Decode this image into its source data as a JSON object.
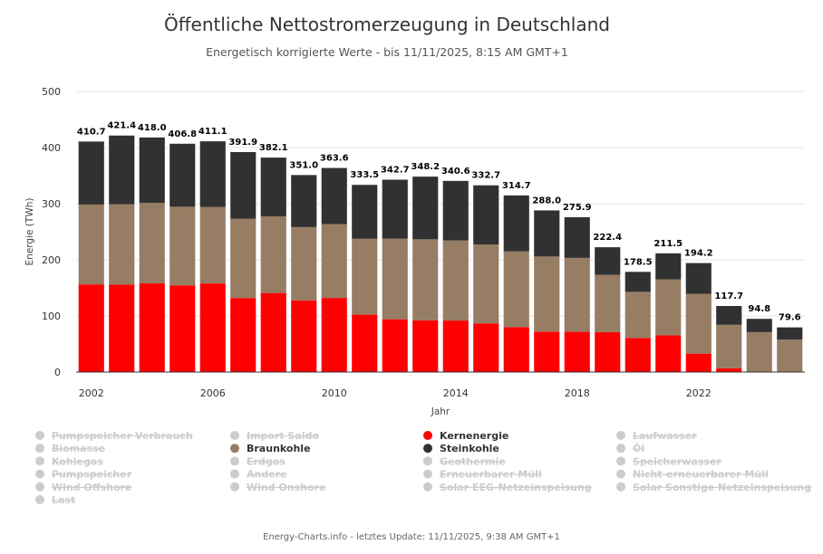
{
  "chart_data": {
    "type": "bar",
    "stacked": true,
    "title": "Öffentliche Nettostromerzeugung in Deutschland",
    "subtitle": "Energetisch korrigierte Werte - bis 11/11/2025, 8:15 AM GMT+1",
    "xlabel": "Jahr",
    "ylabel": "Energie (TWh)",
    "ylim": [
      0,
      500
    ],
    "yticks": [
      0,
      100,
      200,
      300,
      400,
      500
    ],
    "xticks": [
      "2002",
      "2006",
      "2010",
      "2014",
      "2018",
      "2022"
    ],
    "categories": [
      "2002",
      "2003",
      "2004",
      "2005",
      "2006",
      "2007",
      "2008",
      "2009",
      "2010",
      "2011",
      "2012",
      "2013",
      "2014",
      "2015",
      "2016",
      "2017",
      "2018",
      "2019",
      "2020",
      "2021",
      "2022",
      "2023",
      "2024",
      "2025"
    ],
    "series": [
      {
        "name": "Kernenergie",
        "color": "#ff0000",
        "values": [
          156.2,
          156.0,
          158.0,
          154.5,
          157.9,
          132.0,
          140.9,
          127.7,
          132.1,
          102.3,
          94.1,
          92.1,
          91.8,
          86.8,
          80.1,
          72.2,
          72.1,
          71.1,
          60.9,
          65.4,
          32.8,
          6.7,
          0,
          0
        ]
      },
      {
        "name": "Braunkohle",
        "color": "#967d63",
        "values": [
          142.3,
          143.1,
          143.3,
          140.0,
          136.1,
          141.0,
          136.4,
          130.6,
          131.4,
          135.1,
          143.7,
          144.4,
          142.6,
          140.4,
          134.9,
          133.7,
          131.3,
          102.2,
          82.0,
          99.9,
          106.3,
          77.5,
          71.1,
          57.8
        ]
      },
      {
        "name": "Steinkohle",
        "color": "#313131",
        "values": [
          112.2,
          122.3,
          116.7,
          112.3,
          117.1,
          118.9,
          104.8,
          92.7,
          100.1,
          96.1,
          104.9,
          111.7,
          106.2,
          105.5,
          99.7,
          82.1,
          72.5,
          49.1,
          35.6,
          46.2,
          55.1,
          33.5,
          23.7,
          21.8
        ]
      }
    ],
    "totals": [
      "410.7",
      "421.4",
      "418.0",
      "406.8",
      "411.1",
      "391.9",
      "382.1",
      "351.0",
      "363.6",
      "333.5",
      "342.7",
      "348.2",
      "340.6",
      "332.7",
      "314.7",
      "288.0",
      "275.9",
      "222.4",
      "178.5",
      "211.5",
      "194.2",
      "117.7",
      "94.8",
      "79.6"
    ],
    "legend_position": "bottom",
    "grid": true
  },
  "legend": {
    "columns": [
      [
        {
          "label": "Pumpspeicher Verbrauch",
          "active": false,
          "color": "#cccccc"
        },
        {
          "label": "Biomasse",
          "active": false,
          "color": "#cccccc"
        },
        {
          "label": "Kohlegas",
          "active": false,
          "color": "#cccccc"
        },
        {
          "label": "Pumpspeicher",
          "active": false,
          "color": "#cccccc"
        },
        {
          "label": "Wind Offshore",
          "active": false,
          "color": "#cccccc"
        },
        {
          "label": "Last",
          "active": false,
          "color": "#cccccc"
        }
      ],
      [
        {
          "label": "Import Saldo",
          "active": false,
          "color": "#cccccc"
        },
        {
          "label": "Braunkohle",
          "active": true,
          "color": "#967d63"
        },
        {
          "label": "Erdgas",
          "active": false,
          "color": "#cccccc"
        },
        {
          "label": "Andere",
          "active": false,
          "color": "#cccccc"
        },
        {
          "label": "Wind Onshore",
          "active": false,
          "color": "#cccccc"
        }
      ],
      [
        {
          "label": "Kernenergie",
          "active": true,
          "color": "#ff0000"
        },
        {
          "label": "Steinkohle",
          "active": true,
          "color": "#313131"
        },
        {
          "label": "Geothermie",
          "active": false,
          "color": "#cccccc"
        },
        {
          "label": "Erneuerbarer Müll",
          "active": false,
          "color": "#cccccc"
        },
        {
          "label": "Solar EEG-Netzeinspeisung",
          "active": false,
          "color": "#cccccc"
        }
      ],
      [
        {
          "label": "Laufwasser",
          "active": false,
          "color": "#cccccc"
        },
        {
          "label": "Öl",
          "active": false,
          "color": "#cccccc"
        },
        {
          "label": "Speicherwasser",
          "active": false,
          "color": "#cccccc"
        },
        {
          "label": "Nicht-erneuerbarer Müll",
          "active": false,
          "color": "#cccccc"
        },
        {
          "label": "Solar Sonstige Netzeinspeisung",
          "active": false,
          "color": "#cccccc"
        }
      ]
    ]
  },
  "credits": "Energy-Charts.info - letztes Update: 11/11/2025, 9:38 AM GMT+1"
}
